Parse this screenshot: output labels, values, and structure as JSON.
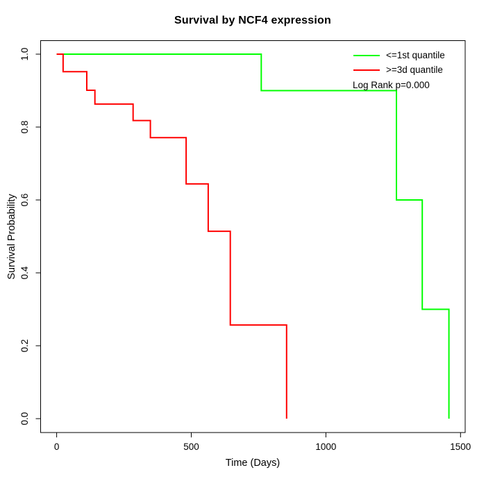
{
  "figure": {
    "title": "Survival by NCF4 expression",
    "xlabel": "Time (Days)",
    "ylabel": "Survival Probability",
    "background": "#ffffff",
    "axis_color": "#000000",
    "text_color": "#000000"
  },
  "legend": {
    "items": [
      {
        "label": "<=1st quantile",
        "color": "#00ff00"
      },
      {
        "label": ">=3d quantile",
        "color": "#ff0000"
      }
    ],
    "annotation": "Log Rank p=0.000"
  },
  "chart_data": {
    "type": "line",
    "subtype": "kaplan-meier-step",
    "title": "Survival by NCF4 expression",
    "xlabel": "Time (Days)",
    "ylabel": "Survival Probability",
    "xlim": [
      0,
      1500
    ],
    "ylim": [
      0.0,
      1.0
    ],
    "grid": false,
    "legend_position": "top-right",
    "annotation": "Log Rank p=0.000",
    "x_ticks": [
      {
        "value": 0,
        "label": "0"
      },
      {
        "value": 500,
        "label": "500"
      },
      {
        "value": 1000,
        "label": "1000"
      },
      {
        "value": 1500,
        "label": "1500"
      }
    ],
    "y_ticks": [
      {
        "value": 0.0,
        "label": "0.0"
      },
      {
        "value": 0.2,
        "label": "0.2"
      },
      {
        "value": 0.4,
        "label": "0.4"
      },
      {
        "value": 0.6,
        "label": "0.6"
      },
      {
        "value": 0.8,
        "label": "0.8"
      },
      {
        "value": 1.0,
        "label": "1.0"
      }
    ],
    "series": [
      {
        "name": "<=1st quantile",
        "color": "#00ff00",
        "steps": [
          [
            0,
            1.0
          ],
          [
            760,
            0.9
          ],
          [
            1262,
            0.6
          ],
          [
            1358,
            0.3
          ],
          [
            1457,
            0.0
          ]
        ]
      },
      {
        "name": ">=3d quantile",
        "color": "#ff0000",
        "steps": [
          [
            0,
            1.0
          ],
          [
            24,
            0.952
          ],
          [
            112,
            0.901
          ],
          [
            142,
            0.863
          ],
          [
            284,
            0.818
          ],
          [
            348,
            0.771
          ],
          [
            481,
            0.644
          ],
          [
            563,
            0.514
          ],
          [
            645,
            0.257
          ],
          [
            854,
            0.0
          ]
        ]
      }
    ]
  }
}
